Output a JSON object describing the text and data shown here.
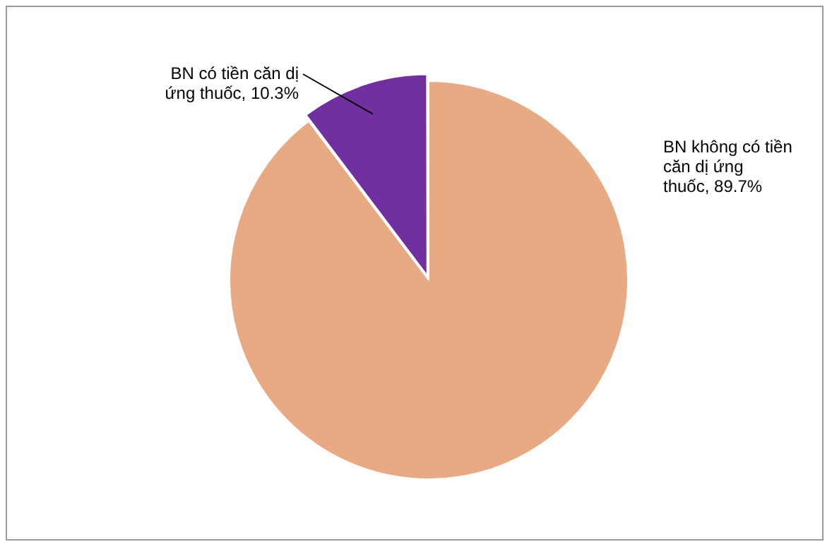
{
  "chart_data": {
    "type": "pie",
    "categories": [
      "BN không có tiền căn dị ứng thuốc",
      "BN có tiền căn dị ứng thuốc"
    ],
    "values": [
      89.7,
      10.3
    ],
    "colors": [
      "#e8aa82",
      "#7030a0"
    ],
    "value_labels": [
      "89.7%",
      "10.3%"
    ],
    "legend": false
  }
}
